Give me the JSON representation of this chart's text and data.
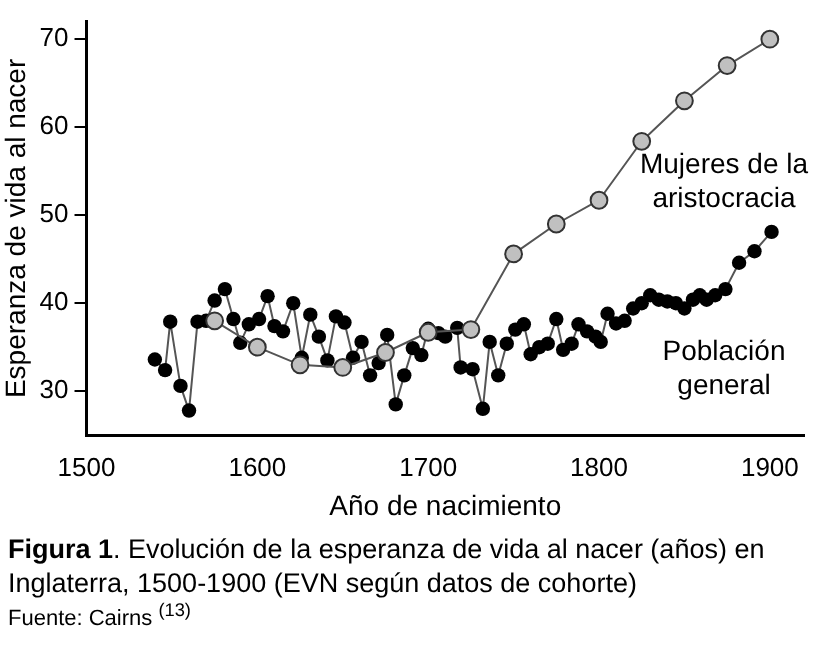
{
  "chart_data": {
    "type": "line",
    "title": "Figura 1. Evolución de la esperanza de vida al nacer (años) en Inglaterra, 1500-1900 (EVN según datos de cohorte)",
    "xlabel": "Año de nacimiento",
    "ylabel": "Esperanza de vida al nacer",
    "xlim": [
      1500,
      1920
    ],
    "xticks": [
      1500,
      1600,
      1700,
      1800,
      1900
    ],
    "ylim": [
      25,
      72
    ],
    "yticks": [
      30,
      40,
      50,
      60,
      70
    ],
    "grid": false,
    "legend": false,
    "marker": "circle",
    "line_style": "solid",
    "series": [
      {
        "name": "Población general",
        "color": "#000000",
        "x": [
          1540,
          1546,
          1549,
          1555,
          1560,
          1565,
          1570,
          1575,
          1581,
          1586,
          1590,
          1595,
          1601,
          1606,
          1610,
          1615,
          1621,
          1626,
          1631,
          1636,
          1641,
          1646,
          1651,
          1656,
          1661,
          1666,
          1671,
          1676,
          1681,
          1686,
          1691,
          1696,
          1700,
          1706,
          1710,
          1717,
          1719,
          1726,
          1732,
          1736,
          1741,
          1746,
          1751,
          1756,
          1760,
          1765,
          1770,
          1775,
          1779,
          1784,
          1788,
          1793,
          1798,
          1801,
          1805,
          1810,
          1815,
          1820,
          1825,
          1830,
          1835,
          1840,
          1845,
          1850,
          1855,
          1859,
          1863,
          1868,
          1874,
          1882,
          1891,
          1901
        ],
        "values": [
          33.6,
          32.4,
          37.9,
          30.6,
          27.8,
          37.9,
          38,
          40.3,
          41.6,
          38.2,
          35.5,
          37.6,
          38.2,
          40.8,
          37.4,
          36.8,
          40,
          33.8,
          38.7,
          36.2,
          33.5,
          38.5,
          37.8,
          33.8,
          35.6,
          31.8,
          33.2,
          36.4,
          28.5,
          31.8,
          34.9,
          34.1,
          37.1,
          36.6,
          36.2,
          37.2,
          32.7,
          32.5,
          28,
          35.6,
          31.8,
          35.4,
          37,
          37.6,
          34.2,
          35,
          35.4,
          38.2,
          34.7,
          35.4,
          37.6,
          36.8,
          36.2,
          35.6,
          38.8,
          37.7,
          38,
          39.4,
          40,
          40.9,
          40.4,
          40.2,
          40,
          39.4,
          40.4,
          40.9,
          40.4,
          40.9,
          41.6,
          44.6,
          45.9,
          48.1
        ]
      },
      {
        "name": "Mujeres de la aristocracia",
        "color": "#c0c0c0",
        "x": [
          1575,
          1600,
          1625,
          1650,
          1675,
          1700,
          1725,
          1750,
          1775,
          1800,
          1825,
          1850,
          1875,
          1900
        ],
        "values": [
          38,
          35,
          33,
          32.7,
          34.4,
          36.7,
          37,
          45.6,
          49,
          51.7,
          58.4,
          63,
          67,
          70
        ]
      }
    ],
    "annotations": [
      "Fuente: Cairns $^{(13)}$"
    ]
  }
}
